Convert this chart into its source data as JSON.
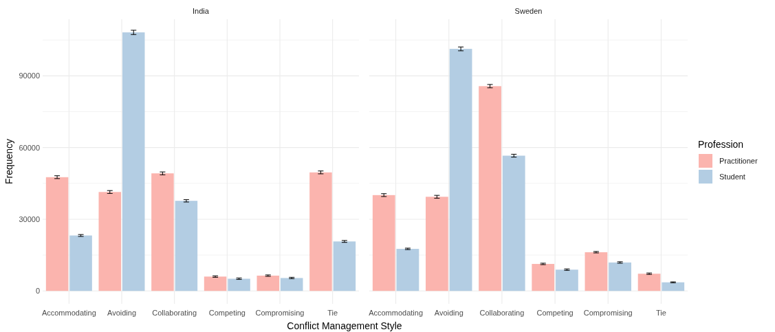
{
  "chart_data": [
    {
      "type": "bar",
      "title": "India",
      "xlabel": "Conflict Management Style",
      "ylabel": "Frequency",
      "categories": [
        "Accommodating",
        "Avoiding",
        "Collaborating",
        "Competing",
        "Compromising",
        "Tie"
      ],
      "series": [
        {
          "color": "#fbb4ae",
          "values": [
            47600,
            41400,
            49200,
            6000,
            6400,
            49600
          ],
          "errors": [
            600,
            600,
            600,
            300,
            300,
            600
          ]
        },
        {
          "color": "#b3cde3",
          "values": [
            23200,
            108200,
            37700,
            5100,
            5400,
            20700
          ],
          "errors": [
            400,
            900,
            500,
            300,
            300,
            400
          ]
        }
      ],
      "ylim": [
        -5400,
        113700
      ],
      "yticks": [
        0,
        {
          "value": 15000,
          "label": null
        },
        30000,
        {
          "value": 45000,
          "label": null
        },
        60000,
        {
          "value": 75000,
          "label": null
        },
        90000,
        {
          "value": 105000,
          "label": null
        }
      ],
      "grid": true
    },
    {
      "type": "bar",
      "title": "Sweden",
      "categories": [
        "Accommodating",
        "Avoiding",
        "Collaborating",
        "Competing",
        "Compromising",
        "Tie"
      ],
      "series": [
        {
          "name": "Practitioner",
          "color": "#fbb4ae",
          "values": [
            40100,
            39400,
            85700,
            11300,
            16200,
            7200
          ],
          "errors": [
            600,
            600,
            700,
            300,
            300,
            300
          ]
        },
        {
          "name": "Student",
          "color": "#b3cde3",
          "values": [
            17600,
            101300,
            56600,
            8900,
            11900,
            3600
          ],
          "errors": [
            300,
            800,
            600,
            300,
            300,
            200
          ]
        }
      ],
      "ylim": [
        -5400,
        113700
      ],
      "yticks": [
        0,
        {
          "value": 15000,
          "label": null
        },
        30000,
        {
          "value": 45000,
          "label": null
        },
        60000,
        {
          "value": 75000,
          "label": null
        },
        90000,
        {
          "value": 105000,
          "label": null
        }
      ],
      "tick_labels": "x",
      "grid": true,
      "legend": "right",
      "legend_title": "Profession"
    }
  ]
}
